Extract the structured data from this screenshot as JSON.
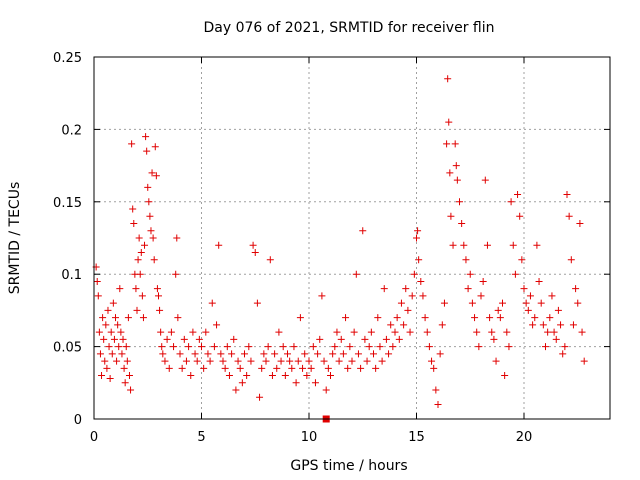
{
  "chart_data": {
    "type": "scatter",
    "title": "Day 076 of 2021, SRMTID for receiver flin",
    "xlabel": "GPS time / hours",
    "ylabel": "SRMTID / TECUs",
    "xlim": [
      0,
      24
    ],
    "ylim": [
      0,
      0.25
    ],
    "xticks": [
      0,
      5,
      10,
      15,
      20
    ],
    "xtick_labels": [
      "0",
      "5",
      "10",
      "15",
      "20"
    ],
    "yticks": [
      0,
      0.05,
      0.1,
      0.15,
      0.2,
      0.25
    ],
    "ytick_labels": [
      "0",
      "0.05",
      "0.1",
      "0.15",
      "0.2",
      "0.25"
    ],
    "grid": true,
    "marker": "plus",
    "color": "#e00000",
    "series": [
      {
        "name": "SRMTID",
        "points": [
          [
            0.1,
            0.105
          ],
          [
            0.15,
            0.095
          ],
          [
            0.2,
            0.085
          ],
          [
            0.25,
            0.06
          ],
          [
            0.3,
            0.045
          ],
          [
            0.35,
            0.03
          ],
          [
            0.4,
            0.07
          ],
          [
            0.45,
            0.055
          ],
          [
            0.5,
            0.04
          ],
          [
            0.55,
            0.065
          ],
          [
            0.6,
            0.035
          ],
          [
            0.65,
            0.075
          ],
          [
            0.7,
            0.05
          ],
          [
            0.75,
            0.028
          ],
          [
            0.8,
            0.06
          ],
          [
            0.85,
            0.045
          ],
          [
            0.9,
            0.08
          ],
          [
            0.95,
            0.055
          ],
          [
            1.0,
            0.07
          ],
          [
            1.05,
            0.04
          ],
          [
            1.1,
            0.065
          ],
          [
            1.15,
            0.05
          ],
          [
            1.2,
            0.09
          ],
          [
            1.25,
            0.06
          ],
          [
            1.3,
            0.045
          ],
          [
            1.35,
            0.055
          ],
          [
            1.4,
            0.035
          ],
          [
            1.45,
            0.025
          ],
          [
            1.5,
            0.05
          ],
          [
            1.55,
            0.04
          ],
          [
            1.6,
            0.07
          ],
          [
            1.65,
            0.03
          ],
          [
            1.7,
            0.02
          ],
          [
            1.75,
            0.19
          ],
          [
            1.8,
            0.145
          ],
          [
            1.85,
            0.135
          ],
          [
            1.9,
            0.1
          ],
          [
            1.95,
            0.09
          ],
          [
            2.0,
            0.075
          ],
          [
            2.05,
            0.11
          ],
          [
            2.1,
            0.125
          ],
          [
            2.15,
            0.1
          ],
          [
            2.2,
            0.115
          ],
          [
            2.25,
            0.085
          ],
          [
            2.3,
            0.07
          ],
          [
            2.35,
            0.12
          ],
          [
            2.4,
            0.195
          ],
          [
            2.45,
            0.185
          ],
          [
            2.5,
            0.16
          ],
          [
            2.55,
            0.15
          ],
          [
            2.6,
            0.14
          ],
          [
            2.65,
            0.13
          ],
          [
            2.7,
            0.17
          ],
          [
            2.75,
            0.125
          ],
          [
            2.8,
            0.11
          ],
          [
            2.85,
            0.188
          ],
          [
            2.9,
            0.168
          ],
          [
            2.95,
            0.09
          ],
          [
            3.0,
            0.085
          ],
          [
            3.05,
            0.075
          ],
          [
            3.1,
            0.06
          ],
          [
            3.15,
            0.05
          ],
          [
            3.2,
            0.045
          ],
          [
            3.3,
            0.04
          ],
          [
            3.4,
            0.055
          ],
          [
            3.5,
            0.035
          ],
          [
            3.6,
            0.06
          ],
          [
            3.7,
            0.05
          ],
          [
            3.8,
            0.1
          ],
          [
            3.85,
            0.125
          ],
          [
            3.9,
            0.07
          ],
          [
            4.0,
            0.045
          ],
          [
            4.1,
            0.035
          ],
          [
            4.2,
            0.055
          ],
          [
            4.3,
            0.04
          ],
          [
            4.4,
            0.05
          ],
          [
            4.5,
            0.03
          ],
          [
            4.6,
            0.06
          ],
          [
            4.7,
            0.045
          ],
          [
            4.8,
            0.04
          ],
          [
            4.9,
            0.055
          ],
          [
            5.0,
            0.05
          ],
          [
            5.1,
            0.035
          ],
          [
            5.2,
            0.06
          ],
          [
            5.3,
            0.045
          ],
          [
            5.4,
            0.04
          ],
          [
            5.5,
            0.08
          ],
          [
            5.6,
            0.05
          ],
          [
            5.7,
            0.065
          ],
          [
            5.8,
            0.12
          ],
          [
            5.9,
            0.045
          ],
          [
            6.0,
            0.04
          ],
          [
            6.1,
            0.035
          ],
          [
            6.2,
            0.05
          ],
          [
            6.3,
            0.03
          ],
          [
            6.4,
            0.045
          ],
          [
            6.5,
            0.055
          ],
          [
            6.6,
            0.02
          ],
          [
            6.7,
            0.04
          ],
          [
            6.8,
            0.035
          ],
          [
            6.9,
            0.025
          ],
          [
            7.0,
            0.045
          ],
          [
            7.1,
            0.03
          ],
          [
            7.2,
            0.05
          ],
          [
            7.3,
            0.04
          ],
          [
            7.4,
            0.12
          ],
          [
            7.5,
            0.115
          ],
          [
            7.6,
            0.08
          ],
          [
            7.7,
            0.015
          ],
          [
            7.8,
            0.035
          ],
          [
            7.9,
            0.045
          ],
          [
            8.0,
            0.04
          ],
          [
            8.1,
            0.05
          ],
          [
            8.2,
            0.11
          ],
          [
            8.3,
            0.03
          ],
          [
            8.4,
            0.045
          ],
          [
            8.5,
            0.035
          ],
          [
            8.6,
            0.06
          ],
          [
            8.7,
            0.04
          ],
          [
            8.8,
            0.05
          ],
          [
            8.9,
            0.03
          ],
          [
            9.0,
            0.045
          ],
          [
            9.1,
            0.04
          ],
          [
            9.2,
            0.035
          ],
          [
            9.3,
            0.05
          ],
          [
            9.4,
            0.025
          ],
          [
            9.5,
            0.04
          ],
          [
            9.6,
            0.07
          ],
          [
            9.7,
            0.035
          ],
          [
            9.8,
            0.045
          ],
          [
            9.9,
            0.03
          ],
          [
            10.0,
            0.04
          ],
          [
            10.1,
            0.035
          ],
          [
            10.2,
            0.05
          ],
          [
            10.3,
            0.025
          ],
          [
            10.4,
            0.045
          ],
          [
            10.5,
            0.055
          ],
          [
            10.6,
            0.085
          ],
          [
            10.7,
            0.04
          ],
          [
            10.8,
            0.02
          ],
          [
            10.9,
            0.035
          ],
          [
            11.0,
            0.03
          ],
          [
            11.1,
            0.045
          ],
          [
            11.2,
            0.05
          ],
          [
            11.3,
            0.06
          ],
          [
            11.4,
            0.04
          ],
          [
            11.5,
            0.055
          ],
          [
            11.6,
            0.045
          ],
          [
            11.7,
            0.07
          ],
          [
            11.8,
            0.035
          ],
          [
            11.9,
            0.05
          ],
          [
            12.0,
            0.04
          ],
          [
            12.1,
            0.06
          ],
          [
            12.2,
            0.1
          ],
          [
            12.3,
            0.045
          ],
          [
            12.4,
            0.035
          ],
          [
            12.5,
            0.13
          ],
          [
            12.6,
            0.055
          ],
          [
            12.7,
            0.04
          ],
          [
            12.8,
            0.05
          ],
          [
            12.9,
            0.06
          ],
          [
            13.0,
            0.045
          ],
          [
            13.1,
            0.035
          ],
          [
            13.2,
            0.07
          ],
          [
            13.3,
            0.05
          ],
          [
            13.4,
            0.04
          ],
          [
            13.5,
            0.09
          ],
          [
            13.6,
            0.055
          ],
          [
            13.7,
            0.045
          ],
          [
            13.8,
            0.065
          ],
          [
            13.9,
            0.05
          ],
          [
            14.0,
            0.06
          ],
          [
            14.1,
            0.07
          ],
          [
            14.2,
            0.055
          ],
          [
            14.3,
            0.08
          ],
          [
            14.4,
            0.065
          ],
          [
            14.5,
            0.09
          ],
          [
            14.6,
            0.075
          ],
          [
            14.7,
            0.06
          ],
          [
            14.8,
            0.085
          ],
          [
            14.9,
            0.1
          ],
          [
            15.0,
            0.125
          ],
          [
            15.05,
            0.13
          ],
          [
            15.1,
            0.11
          ],
          [
            15.2,
            0.095
          ],
          [
            15.3,
            0.085
          ],
          [
            15.4,
            0.07
          ],
          [
            15.5,
            0.06
          ],
          [
            15.6,
            0.05
          ],
          [
            15.7,
            0.04
          ],
          [
            15.8,
            0.035
          ],
          [
            15.9,
            0.02
          ],
          [
            16.0,
            0.01
          ],
          [
            16.1,
            0.045
          ],
          [
            16.2,
            0.065
          ],
          [
            16.3,
            0.08
          ],
          [
            16.4,
            0.19
          ],
          [
            16.45,
            0.235
          ],
          [
            16.5,
            0.205
          ],
          [
            16.55,
            0.17
          ],
          [
            16.6,
            0.14
          ],
          [
            16.7,
            0.12
          ],
          [
            16.8,
            0.19
          ],
          [
            16.85,
            0.175
          ],
          [
            16.9,
            0.165
          ],
          [
            17.0,
            0.15
          ],
          [
            17.1,
            0.135
          ],
          [
            17.2,
            0.12
          ],
          [
            17.3,
            0.11
          ],
          [
            17.4,
            0.09
          ],
          [
            17.5,
            0.1
          ],
          [
            17.6,
            0.08
          ],
          [
            17.7,
            0.07
          ],
          [
            17.8,
            0.06
          ],
          [
            17.9,
            0.05
          ],
          [
            18.0,
            0.085
          ],
          [
            18.1,
            0.095
          ],
          [
            18.2,
            0.165
          ],
          [
            18.3,
            0.12
          ],
          [
            18.4,
            0.07
          ],
          [
            18.5,
            0.06
          ],
          [
            18.6,
            0.055
          ],
          [
            18.7,
            0.04
          ],
          [
            18.8,
            0.075
          ],
          [
            18.9,
            0.07
          ],
          [
            19.0,
            0.08
          ],
          [
            19.1,
            0.03
          ],
          [
            19.2,
            0.06
          ],
          [
            19.3,
            0.05
          ],
          [
            19.4,
            0.15
          ],
          [
            19.5,
            0.12
          ],
          [
            19.6,
            0.1
          ],
          [
            19.7,
            0.155
          ],
          [
            19.8,
            0.14
          ],
          [
            19.9,
            0.11
          ],
          [
            20.0,
            0.09
          ],
          [
            20.1,
            0.08
          ],
          [
            20.2,
            0.075
          ],
          [
            20.3,
            0.085
          ],
          [
            20.4,
            0.065
          ],
          [
            20.5,
            0.07
          ],
          [
            20.6,
            0.12
          ],
          [
            20.7,
            0.095
          ],
          [
            20.8,
            0.08
          ],
          [
            20.9,
            0.065
          ],
          [
            21.0,
            0.05
          ],
          [
            21.1,
            0.06
          ],
          [
            21.2,
            0.07
          ],
          [
            21.3,
            0.085
          ],
          [
            21.4,
            0.06
          ],
          [
            21.5,
            0.055
          ],
          [
            21.6,
            0.075
          ],
          [
            21.7,
            0.065
          ],
          [
            21.8,
            0.045
          ],
          [
            21.9,
            0.05
          ],
          [
            22.0,
            0.155
          ],
          [
            22.1,
            0.14
          ],
          [
            22.2,
            0.11
          ],
          [
            22.3,
            0.065
          ],
          [
            22.4,
            0.09
          ],
          [
            22.5,
            0.08
          ],
          [
            22.6,
            0.135
          ],
          [
            22.7,
            0.06
          ],
          [
            22.8,
            0.04
          ]
        ]
      }
    ],
    "highlight_point": [
      10.8,
      0
    ]
  }
}
